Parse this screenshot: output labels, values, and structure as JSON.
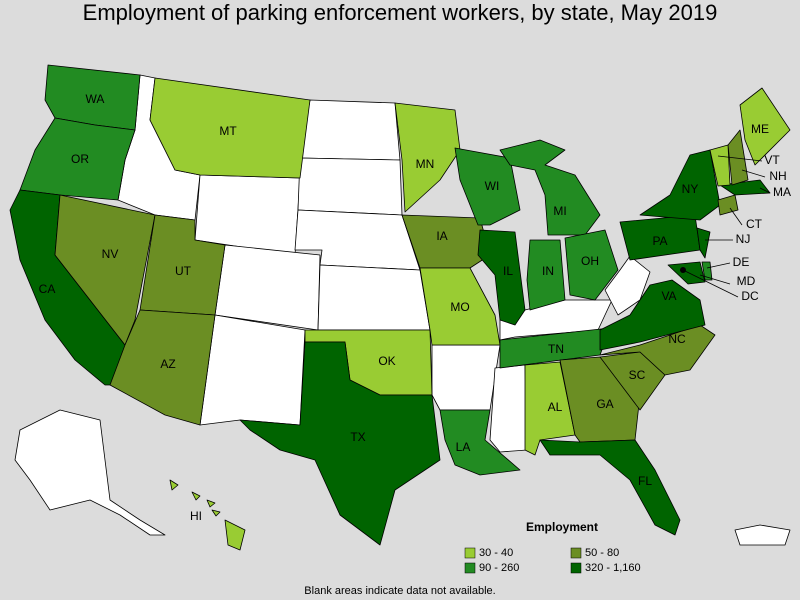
{
  "title": "Employment of parking enforcement workers, by state, May 2019",
  "legend": {
    "title": "Employment",
    "items": [
      {
        "label": "30 - 40",
        "color": "#99cc33"
      },
      {
        "label": "50 - 80",
        "color": "#6b8e23"
      },
      {
        "label": "90 - 260",
        "color": "#228b22"
      },
      {
        "label": "320 - 1,160",
        "color": "#006400"
      }
    ]
  },
  "states": [
    {
      "label": "WA",
      "color": "#228b22"
    },
    {
      "label": "OR",
      "color": "#228b22"
    },
    {
      "label": "CA",
      "color": "#006400"
    },
    {
      "label": "NV",
      "color": "#6b8e23"
    },
    {
      "label": "UT",
      "color": "#6b8e23"
    },
    {
      "label": "AZ",
      "color": "#6b8e23"
    },
    {
      "label": "MT",
      "color": "#99cc33"
    },
    {
      "label": "OK",
      "color": "#99cc33"
    },
    {
      "label": "TX",
      "color": "#006400"
    },
    {
      "label": "MN",
      "color": "#99cc33"
    },
    {
      "label": "IA",
      "color": "#6b8e23"
    },
    {
      "label": "MO",
      "color": "#99cc33"
    },
    {
      "label": "LA",
      "color": "#228b22"
    },
    {
      "label": "WI",
      "color": "#228b22"
    },
    {
      "label": "MI",
      "color": "#228b22"
    },
    {
      "label": "IL",
      "color": "#006400"
    },
    {
      "label": "IN",
      "color": "#228b22"
    },
    {
      "label": "OH",
      "color": "#228b22"
    },
    {
      "label": "TN",
      "color": "#228b22"
    },
    {
      "label": "AL",
      "color": "#99cc33"
    },
    {
      "label": "GA",
      "color": "#6b8e23"
    },
    {
      "label": "FL",
      "color": "#006400"
    },
    {
      "label": "SC",
      "color": "#6b8e23"
    },
    {
      "label": "NC",
      "color": "#6b8e23"
    },
    {
      "label": "VA",
      "color": "#006400"
    },
    {
      "label": "PA",
      "color": "#006400"
    },
    {
      "label": "NY",
      "color": "#006400"
    },
    {
      "label": "NJ",
      "color": "#006400"
    },
    {
      "label": "MD",
      "color": "#006400"
    },
    {
      "label": "DE",
      "color": "#228b22"
    },
    {
      "label": "DC",
      "color": "#000000"
    },
    {
      "label": "CT",
      "color": "#6b8e23"
    },
    {
      "label": "MA",
      "color": "#006400"
    },
    {
      "label": "NH",
      "color": "#6b8e23"
    },
    {
      "label": "VT",
      "color": "#99cc33"
    },
    {
      "label": "ME",
      "color": "#99cc33"
    },
    {
      "label": "HI",
      "color": "#99cc33"
    }
  ],
  "footnote": "Blank areas indicate data not available."
}
